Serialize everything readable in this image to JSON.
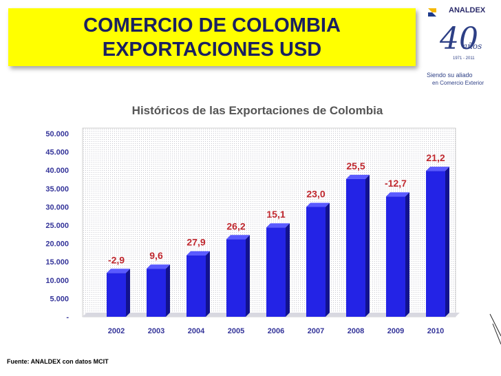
{
  "slide": {
    "title_line1": "COMERCIO DE COLOMBIA",
    "title_line2": "EXPORTACIONES USD",
    "source": "Fuente: ANALDEX con datos  MCIT"
  },
  "logo": {
    "brand": "ANALDEX",
    "years": "40",
    "anos": "años",
    "range": "1971 - 2011",
    "slogan_line1": "Siendo su aliado",
    "slogan_line2": "en Comercio Exterior"
  },
  "colors": {
    "title_bg": "#ffff00",
    "title_text": "#1a2060",
    "bar": "#2323e6",
    "growth_label": "#c0282e",
    "chart_title": "#555555",
    "axis_text": "#333399"
  },
  "chart_data": {
    "type": "bar",
    "title": "Históricos de las Exportaciones de Colombia",
    "xlabel": "",
    "ylabel": "",
    "ylim": [
      0,
      50000
    ],
    "yticks": [
      0,
      5000,
      10000,
      15000,
      20000,
      25000,
      30000,
      35000,
      40000,
      45000,
      50000
    ],
    "ytick_labels": [
      "-",
      "5.000",
      "10.000",
      "15.000",
      "20.000",
      "25.000",
      "30.000",
      "35.000",
      "40.000",
      "45.000",
      "50.000"
    ],
    "grid": false,
    "categories": [
      "2002",
      "2003",
      "2004",
      "2005",
      "2006",
      "2007",
      "2008",
      "2009",
      "2010"
    ],
    "values": [
      11975,
      13129,
      16788,
      21190,
      24391,
      29991,
      37626,
      32853,
      39820
    ],
    "growth_labels": [
      "-2,9",
      "9,6",
      "27,9",
      "26,2",
      "15,1",
      "23,0",
      "25,5",
      "-12,7",
      "21,2"
    ]
  }
}
